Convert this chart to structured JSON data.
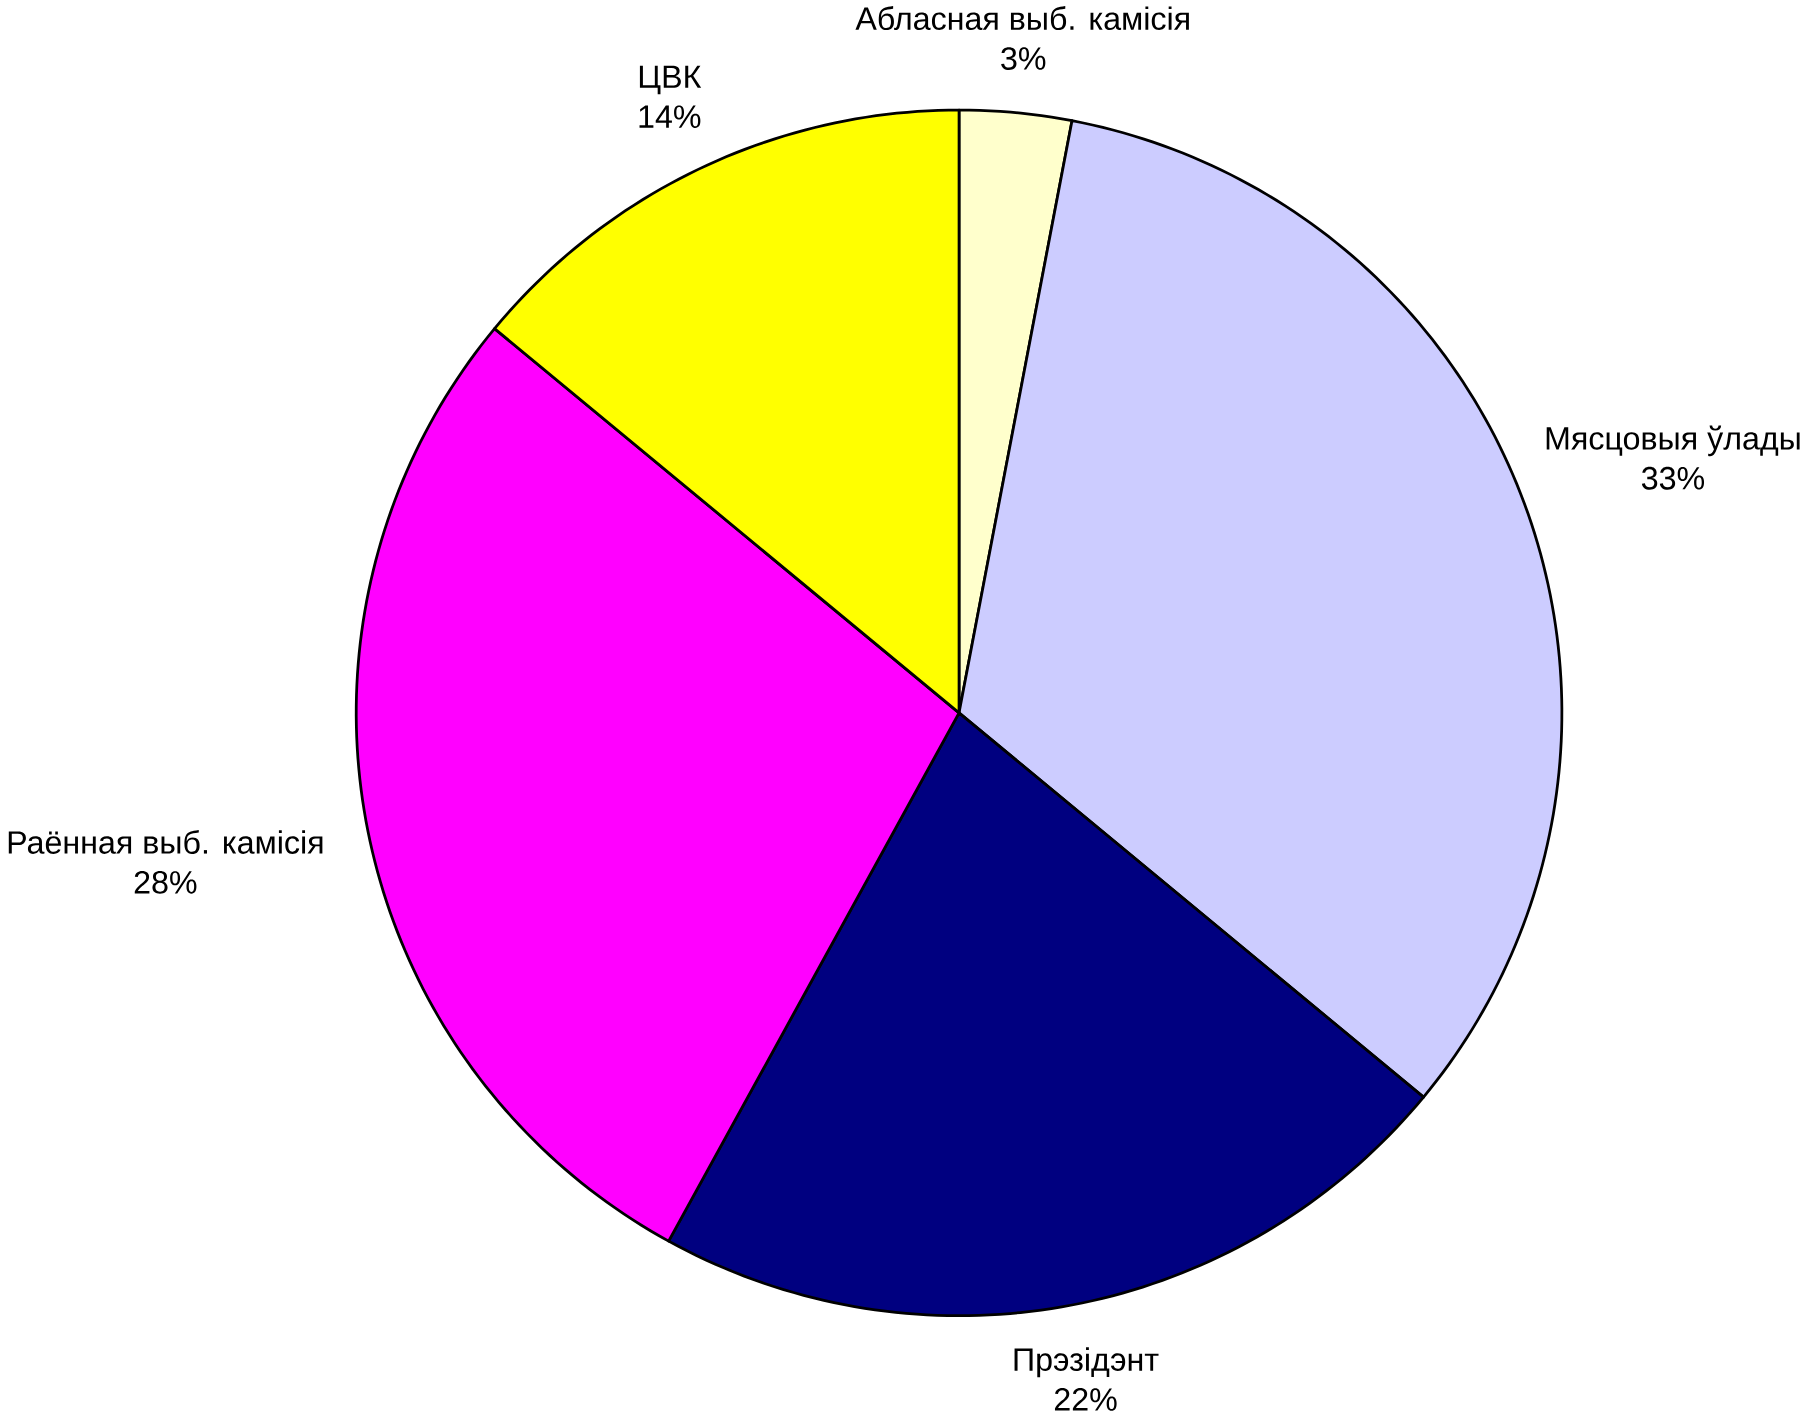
{
  "chart_data": {
    "type": "pie",
    "categories": [
      "Абласная выб. камісія",
      "Мясцовыя ўлады",
      "Прэзідэнт",
      "Раённая выб. камісія",
      "ЦВК"
    ],
    "values": [
      3,
      33,
      22,
      28,
      14
    ],
    "value_labels": [
      "3%",
      "33%",
      "22%",
      "28%",
      "14%"
    ],
    "colors": [
      "#ffffcc",
      "#ccccff",
      "#000080",
      "#ff00ff",
      "#ffff00"
    ]
  }
}
